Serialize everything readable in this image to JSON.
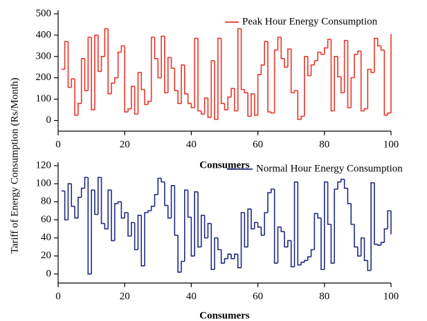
{
  "chart_data": [
    {
      "type": "step",
      "ylabel": "Tariff of Energy Consumption (Rs/Month)",
      "xlabel": "Consumers",
      "x": [
        1,
        2,
        3,
        4,
        5,
        6,
        7,
        8,
        9,
        10,
        11,
        12,
        13,
        14,
        15,
        16,
        17,
        18,
        19,
        20,
        21,
        22,
        23,
        24,
        25,
        26,
        27,
        28,
        29,
        30,
        31,
        32,
        33,
        34,
        35,
        36,
        37,
        38,
        39,
        40,
        41,
        42,
        43,
        44,
        45,
        46,
        47,
        48,
        49,
        50,
        51,
        52,
        53,
        54,
        55,
        56,
        57,
        58,
        59,
        60,
        61,
        62,
        63,
        64,
        65,
        66,
        67,
        68,
        69,
        70,
        71,
        72,
        73,
        74,
        75,
        76,
        77,
        78,
        79,
        80,
        81,
        82,
        83,
        84,
        85,
        86,
        87,
        88,
        89,
        90,
        91,
        92,
        93,
        94,
        95,
        96,
        97,
        98,
        99,
        100
      ],
      "series": [
        {
          "name": "Peak Hour Energy Consumption",
          "color": "#e8352a",
          "values": [
            240,
            370,
            155,
            195,
            25,
            80,
            290,
            140,
            390,
            50,
            400,
            230,
            300,
            430,
            125,
            175,
            200,
            320,
            350,
            40,
            55,
            160,
            30,
            225,
            145,
            75,
            90,
            390,
            290,
            200,
            395,
            130,
            295,
            245,
            140,
            80,
            260,
            125,
            80,
            60,
            385,
            45,
            30,
            105,
            15,
            280,
            5,
            385,
            80,
            50,
            110,
            150,
            45,
            430,
            145,
            130,
            20,
            125,
            25,
            215,
            260,
            370,
            40,
            35,
            330,
            390,
            290,
            250,
            335,
            130,
            140,
            5,
            20,
            300,
            210,
            260,
            280,
            320,
            310,
            340,
            380,
            45,
            300,
            205,
            130,
            375,
            60,
            200,
            310,
            325,
            45,
            55,
            240,
            225,
            385,
            350,
            330,
            25,
            35,
            405
          ]
        }
      ],
      "xlim": [
        0,
        100
      ],
      "xticks": [
        0,
        20,
        40,
        60,
        80,
        100
      ],
      "ylim": [
        -50,
        500
      ],
      "yticks": [
        0,
        100,
        200,
        300,
        400,
        500
      ]
    },
    {
      "type": "step",
      "xlabel": "Consumers",
      "x": [
        1,
        2,
        3,
        4,
        5,
        6,
        7,
        8,
        9,
        10,
        11,
        12,
        13,
        14,
        15,
        16,
        17,
        18,
        19,
        20,
        21,
        22,
        23,
        24,
        25,
        26,
        27,
        28,
        29,
        30,
        31,
        32,
        33,
        34,
        35,
        36,
        37,
        38,
        39,
        40,
        41,
        42,
        43,
        44,
        45,
        46,
        47,
        48,
        49,
        50,
        51,
        52,
        53,
        54,
        55,
        56,
        57,
        58,
        59,
        60,
        61,
        62,
        63,
        64,
        65,
        66,
        67,
        68,
        69,
        70,
        71,
        72,
        73,
        74,
        75,
        76,
        77,
        78,
        79,
        80,
        81,
        82,
        83,
        84,
        85,
        86,
        87,
        88,
        89,
        90,
        91,
        92,
        93,
        94,
        95,
        96,
        97,
        98,
        99,
        100
      ],
      "series": [
        {
          "name": "Normal Hour Energy Consumption",
          "color": "#1f2a80",
          "values": [
            92,
            60,
            100,
            75,
            62,
            85,
            95,
            107,
            0,
            93,
            66,
            107,
            56,
            50,
            93,
            37,
            78,
            80,
            62,
            68,
            42,
            57,
            27,
            65,
            9,
            68,
            70,
            75,
            88,
            106,
            102,
            76,
            62,
            98,
            43,
            2,
            14,
            93,
            63,
            20,
            91,
            30,
            65,
            40,
            56,
            5,
            40,
            27,
            12,
            17,
            22,
            17,
            22,
            7,
            68,
            30,
            72,
            50,
            57,
            52,
            43,
            68,
            90,
            94,
            12,
            52,
            47,
            30,
            37,
            8,
            102,
            10,
            13,
            15,
            19,
            27,
            67,
            62,
            5,
            102,
            55,
            12,
            94,
            102,
            105,
            95,
            78,
            55,
            30,
            20,
            40,
            15,
            4,
            101,
            33,
            32,
            35,
            50,
            70,
            44
          ]
        }
      ],
      "xlim": [
        0,
        100
      ],
      "xticks": [
        0,
        20,
        40,
        60,
        80,
        100
      ],
      "ylim": [
        -10,
        120
      ],
      "yticks": [
        0,
        20,
        40,
        60,
        80,
        100,
        120
      ]
    }
  ]
}
